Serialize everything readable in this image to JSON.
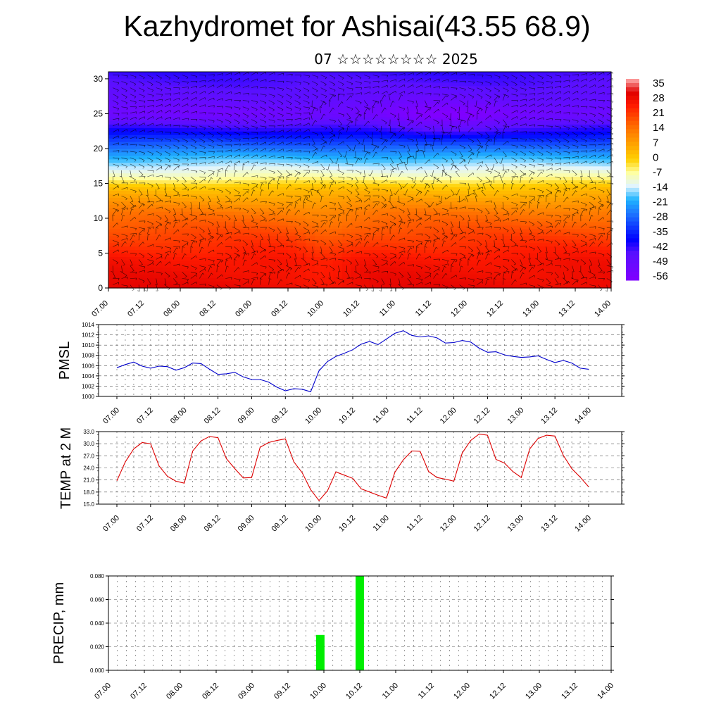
{
  "header": {
    "title": "Kazhydromet for Ashisai(43.55 68.9)",
    "subtitle": "07 ☆☆☆☆☆☆☆☆ 2025"
  },
  "time_ticks": [
    "07.00",
    "07.12",
    "08.00",
    "08.12",
    "09.00",
    "09.12",
    "10.00",
    "10.12",
    "11.00",
    "11.12",
    "12.00",
    "12.12",
    "13.00",
    "13.12",
    "14.00"
  ],
  "chart_data": [
    {
      "type": "heatmap",
      "title": "",
      "xlabel": "",
      "ylabel": "",
      "x_ticks": [
        "07.00",
        "07.12",
        "08.00",
        "08.12",
        "09.00",
        "09.12",
        "10.00",
        "10.12",
        "11.00",
        "11.12",
        "12.00",
        "12.12",
        "13.00",
        "13.12",
        "14.00"
      ],
      "y_ticks": [
        0,
        5,
        10,
        15,
        20,
        25,
        30
      ],
      "ylim": [
        0,
        31
      ],
      "colorbar_labels": [
        35,
        28,
        21,
        14,
        7,
        0,
        -7,
        -14,
        -21,
        -28,
        -35,
        -42,
        -49,
        -56
      ],
      "color_range": [
        -63,
        42
      ],
      "colors": {
        "cold": "#8000ff",
        "cool": "#0000ff",
        "sky": "#1eb4ff",
        "pale": "#e0f4ff",
        "light": "#ffffa0",
        "warm": "#ffd000",
        "orange": "#ff8000",
        "red": "#ff1a00",
        "dark": "#e00000"
      },
      "wind_vectors": "overlay"
    },
    {
      "type": "line",
      "ylabel": "PMSL",
      "ylim": [
        1000,
        1014
      ],
      "y_ticks": [
        "1000",
        "1002",
        "1004",
        "1006",
        "1008",
        "1010",
        "1012",
        "1014"
      ],
      "x_ticks": [
        "07.00",
        "07.12",
        "08.00",
        "08.12",
        "09.00",
        "09.12",
        "10.00",
        "10.12",
        "11.00",
        "11.12",
        "12.00",
        "12.12",
        "13.00",
        "13.12",
        "14.00"
      ],
      "x": [
        0,
        0.125,
        0.25,
        0.375,
        0.5,
        0.625,
        0.75,
        0.875,
        1,
        1.125,
        1.25,
        1.375,
        1.5,
        1.625,
        1.75,
        1.875,
        2,
        2.125,
        2.25,
        2.375,
        2.5,
        2.625,
        2.75,
        2.875,
        3,
        3.125,
        3.25,
        3.375,
        3.5,
        3.625,
        3.75,
        3.875,
        4,
        4.125,
        4.25,
        4.375,
        4.5,
        4.625,
        4.75,
        4.875,
        5,
        5.125,
        5.25,
        5.375,
        5.5,
        5.625,
        5.75,
        5.875,
        6,
        6.125,
        6.25,
        6.375,
        6.5,
        6.625,
        6.75,
        6.875,
        7
      ],
      "series": [
        {
          "color": "#0000cc",
          "values": [
            1005.6,
            1006.2,
            1006.7,
            1005.9,
            1005.5,
            1005.9,
            1005.8,
            1005.1,
            1005.6,
            1006.5,
            1006.4,
            1005.3,
            1004.3,
            1004.4,
            1004.7,
            1003.8,
            1003.3,
            1003.3,
            1002.8,
            1001.8,
            1001.1,
            1001.5,
            1001.4,
            1000.9,
            1005.0,
            1006.8,
            1007.8,
            1008.4,
            1009.1,
            1010.2,
            1010.7,
            1010.1,
            1011.2,
            1012.3,
            1012.8,
            1011.9,
            1011.6,
            1011.8,
            1011.4,
            1010.4,
            1010.5,
            1010.9,
            1010.6,
            1009.4,
            1008.6,
            1008.7,
            1008.1,
            1007.8,
            1007.6,
            1007.7,
            1007.9,
            1007.2,
            1006.6,
            1007.0,
            1006.5,
            1005.5,
            1005.3
          ]
        }
      ]
    },
    {
      "type": "line",
      "ylabel": "TEMP at 2 M",
      "ylim": [
        15,
        33
      ],
      "y_ticks": [
        "15.0",
        "18.0",
        "21.0",
        "24.0",
        "27.0",
        "30.0",
        "33.0"
      ],
      "x_ticks": [
        "07.00",
        "07.12",
        "08.00",
        "08.12",
        "09.00",
        "09.12",
        "10.00",
        "10.12",
        "11.00",
        "11.12",
        "12.00",
        "12.12",
        "13.00",
        "13.12",
        "14.00"
      ],
      "x": [
        0,
        0.125,
        0.25,
        0.375,
        0.5,
        0.625,
        0.75,
        0.875,
        1,
        1.125,
        1.25,
        1.375,
        1.5,
        1.625,
        1.75,
        1.875,
        2,
        2.125,
        2.25,
        2.375,
        2.5,
        2.625,
        2.75,
        2.875,
        3,
        3.125,
        3.25,
        3.375,
        3.5,
        3.625,
        3.75,
        3.875,
        4,
        4.125,
        4.25,
        4.375,
        4.5,
        4.625,
        4.75,
        4.875,
        5,
        5.125,
        5.25,
        5.375,
        5.5,
        5.625,
        5.75,
        5.875,
        6,
        6.125,
        6.25,
        6.375,
        6.5,
        6.625,
        6.75,
        6.875,
        7
      ],
      "series": [
        {
          "color": "#dd0000",
          "values": [
            20.8,
            25.5,
            28.7,
            30.3,
            30.0,
            24.5,
            21.9,
            20.7,
            20.2,
            28.2,
            30.7,
            31.8,
            31.5,
            26.3,
            23.8,
            21.5,
            21.6,
            29.1,
            30.3,
            30.8,
            31.2,
            25.5,
            22.8,
            18.6,
            15.9,
            18.3,
            23.0,
            22.2,
            21.4,
            18.8,
            18.0,
            17.2,
            16.5,
            22.9,
            26.0,
            28.2,
            28.1,
            23.1,
            21.6,
            21.2,
            20.7,
            27.7,
            30.8,
            32.4,
            32.1,
            26.1,
            25.2,
            23.1,
            21.6,
            28.7,
            31.3,
            32.1,
            31.9,
            27.1,
            23.8,
            21.7,
            19.3
          ]
        }
      ]
    },
    {
      "type": "bar",
      "ylabel": "PRECIP, mm",
      "ylim": [
        0,
        0.08
      ],
      "y_ticks": [
        "0.000",
        "0.020",
        "0.040",
        "0.060",
        "0.080"
      ],
      "x_ticks": [
        "07.00",
        "07.12",
        "08.00",
        "08.12",
        "09.00",
        "09.12",
        "10.00",
        "10.12",
        "11.00",
        "11.12",
        "12.00",
        "12.12",
        "13.00",
        "13.12",
        "14.00"
      ],
      "bar_color": "#00ee00",
      "bars": [
        {
          "x": 2.95,
          "value": 0.03
        },
        {
          "x": 3.5,
          "value": 0.08
        }
      ]
    }
  ]
}
